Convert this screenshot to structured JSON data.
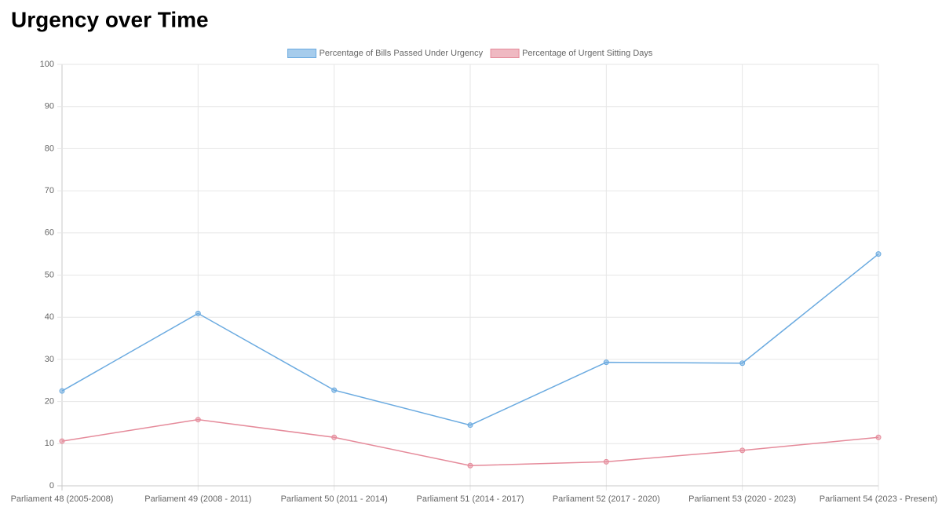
{
  "chart_data": {
    "type": "line",
    "title": "Urgency over Time",
    "categories": [
      "Parliament 48 (2005-2008)",
      "Parliament 49 (2008 - 2011)",
      "Parliament 50 (2011 - 2014)",
      "Parliament 51 (2014 - 2017)",
      "Parliament 52 (2017 - 2020)",
      "Parliament 53 (2020 - 2023)",
      "Parliament 54 (2023 - Present)"
    ],
    "series": [
      {
        "name": "Percentage of Bills Passed Under Urgency",
        "color": "#6aaae0",
        "values": [
          22.5,
          40.9,
          22.7,
          14.4,
          29.3,
          29.1,
          55
        ]
      },
      {
        "name": "Percentage of Urgent Sitting Days",
        "color": "#e58a9a",
        "values": [
          10.6,
          15.7,
          11.5,
          4.8,
          5.7,
          8.4,
          11.5
        ]
      }
    ],
    "ylim": [
      0,
      100
    ],
    "yticks": [
      0,
      10,
      20,
      30,
      40,
      50,
      60,
      70,
      80,
      90,
      100
    ],
    "grid": true,
    "legend": "top"
  }
}
